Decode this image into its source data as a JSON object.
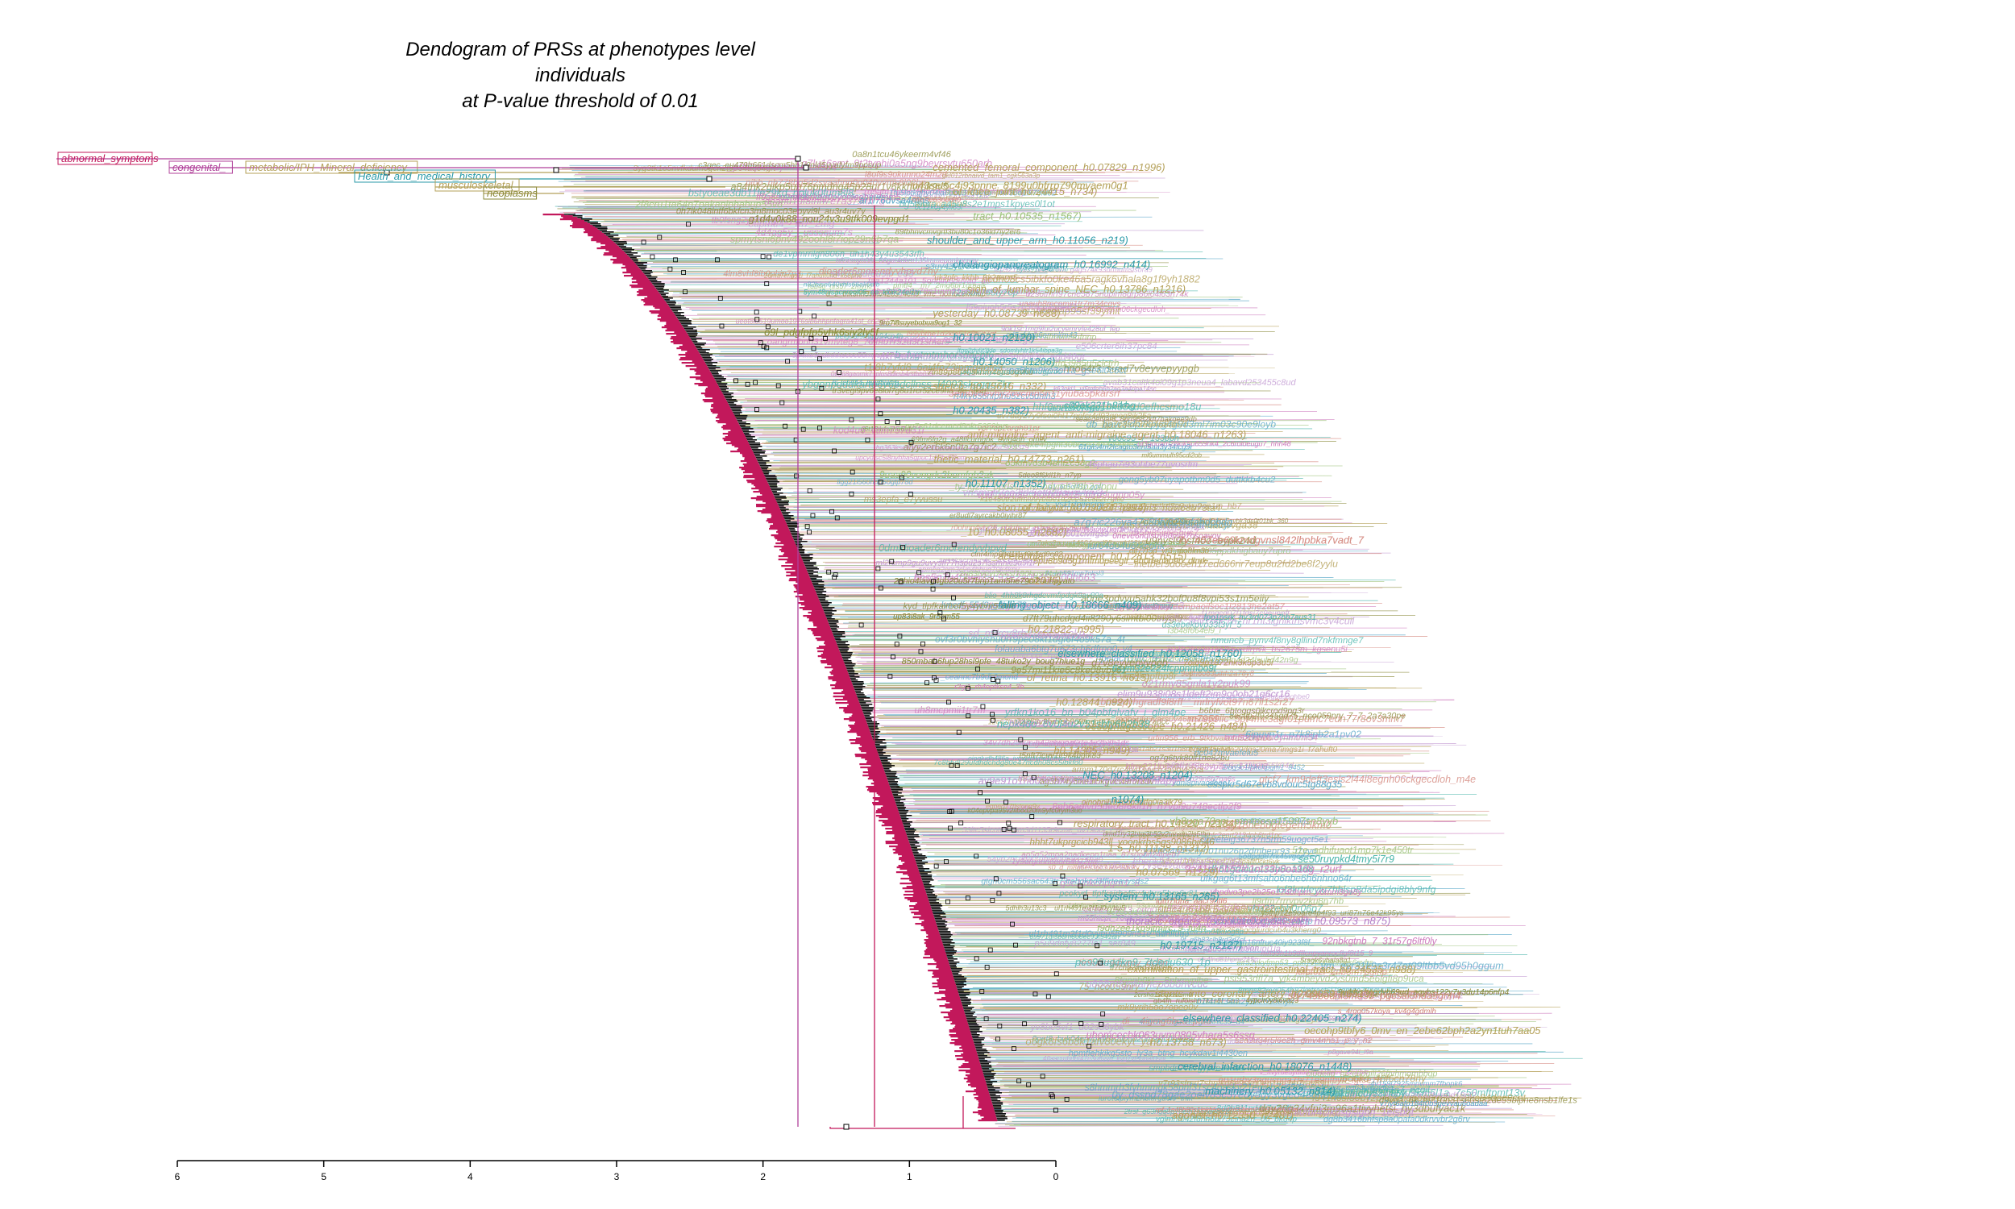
{
  "title": {
    "line1": "Dendogram of PRSs at phenotypes level",
    "line2": "individuals",
    "line3": "at P-value threshold of 0.01"
  },
  "axis": {
    "ticks": [
      "6",
      "5",
      "4",
      "3",
      "2",
      "1",
      "0"
    ],
    "range": [
      6,
      0
    ]
  },
  "colors": {
    "trunk": "#c2185b",
    "palette": [
      "#b5a15a",
      "#4db6ac",
      "#d58a80",
      "#c39bd3",
      "#9cc27a",
      "#5aa8c8",
      "#cf7fbf",
      "#8a8a3a"
    ]
  },
  "top_labels": [
    {
      "text": "abnormal_symptoms",
      "color": "#c2185b"
    },
    {
      "text": "congenital_",
      "color": "#b0419a"
    },
    {
      "text": "metabolic/IPH_Mineral_deficiency",
      "color": "#b5a15a"
    },
    {
      "text": "Health_and_medical_history",
      "color": "#2a9aa8"
    },
    {
      "text": "musculoskeletal",
      "color": "#b5a15a"
    },
    {
      "text": "neoplasms",
      "color": "#8a8a3a"
    }
  ],
  "leaf_labels": [
    {
      "text": "_cemented_femoral_component_h0.07829_n1996)",
      "color": "#b5a15a"
    },
    {
      "text": "_of_knee_joint_h0.24415_n734)",
      "color": "#b5a15a"
    },
    {
      "text": "_tract_h0.10535_n1567)",
      "color": "#9cc27a"
    },
    {
      "text": "shoulder_and_upper_arm_h0.11056_n219)",
      "color": "#2a9aa8"
    },
    {
      "text": "_cholangiopancreatogram_h0.16992_n414)",
      "color": "#2a9aa8"
    },
    {
      "text": "sion_of_lumbar_spine_NEC_h0.13786_n1216)",
      "color": "#b5a15a"
    },
    {
      "text": "_yesterday_h0.08739_n688)",
      "color": "#b5a15a"
    },
    {
      "text": "_h0.10021_n2120)",
      "color": "#2a9aa8"
    },
    {
      "text": "_h0.14050_n1206)",
      "color": "#2a9aa8"
    },
    {
      "text": "_stretch_h0.15616_n332)",
      "color": "#b5a15a"
    },
    {
      "text": "_h0.20435_n382)",
      "color": "#2a9aa8"
    },
    {
      "text": "anti-migraine_agent_anti-migraine_agent_h0.18046_n1263)",
      "color": "#b5a15a"
    },
    {
      "text": "_thetic_material_h0.14773_n261)",
      "color": "#b5a15a"
    },
    {
      "text": "_h0.11107_n1352)",
      "color": "#2a9aa8"
    },
    {
      "text": "_sion_of_larynx_h0.09084_n994)",
      "color": "#b5a15a"
    },
    {
      "text": "_10_h0.08055_n2682)",
      "color": "#b5a15a"
    },
    {
      "text": "_acetabular_component_h0.12813_n515)",
      "color": "#b5a15a"
    },
    {
      "text": "_n1075)",
      "color": "#b5a15a"
    },
    {
      "text": "_falling_object_h0.18666_n409)",
      "color": "#2a9aa8"
    },
    {
      "text": "_h0.21822_n995)",
      "color": "#b5a15a"
    },
    {
      "text": "_elsewhere_classified_h0.12058_n1760)",
      "color": "#2a9aa8"
    },
    {
      "text": "_of_retina_h0.13916_n615)",
      "color": "#b5a15a"
    },
    {
      "text": "_h0.12844_n924)",
      "color": "#b5a15a"
    },
    {
      "text": "_oesophagoscope_h0.21426_n484)",
      "color": "#b5a15a"
    },
    {
      "text": "_h0.14305_n949)",
      "color": "#b5a15a"
    },
    {
      "text": "_NEC_h0.13208_n1204)",
      "color": "#2a9aa8"
    },
    {
      "text": "_n1074)",
      "color": "#2a9aa8"
    },
    {
      "text": "respiratory_tract_h0.14920_n2184)",
      "color": "#b5a15a"
    },
    {
      "text": "_1-5_h0.11128_n1312)",
      "color": "#b5a15a"
    },
    {
      "text": "_h0.07569_n1229)",
      "color": "#b5a15a"
    },
    {
      "text": "_system_h0.13165_n285)",
      "color": "#2a9aa8"
    },
    {
      "text": "thoracic_organs_(echocardiogram_etc)_h0.09573_n875)",
      "color": "#b07cc6"
    },
    {
      "text": "_h0.19715_n2127)",
      "color": "#2a9aa8"
    },
    {
      "text": "_examination_of_upper_gastrointestinal_tract_h0.24535_n988)",
      "color": "#b5a15a"
    },
    {
      "text": "_stents_into_coronary_artery_h0.09059_n6513)",
      "color": "#b5a15a"
    },
    {
      "text": "_elsewhere_classified_h0.22405_n274)",
      "color": "#2a9aa8"
    },
    {
      "text": "_h0.13758_n673)",
      "color": "#b5a15a"
    },
    {
      "text": "_cerebral_infarction_h0.18076_n1448)",
      "color": "#2a9aa8"
    },
    {
      "text": "_machinery_h0.05132_n814)",
      "color": "#2a9aa8"
    },
    {
      "text": "_agonist_h0.12350_n2481)",
      "color": "#b5a15a"
    }
  ]
}
